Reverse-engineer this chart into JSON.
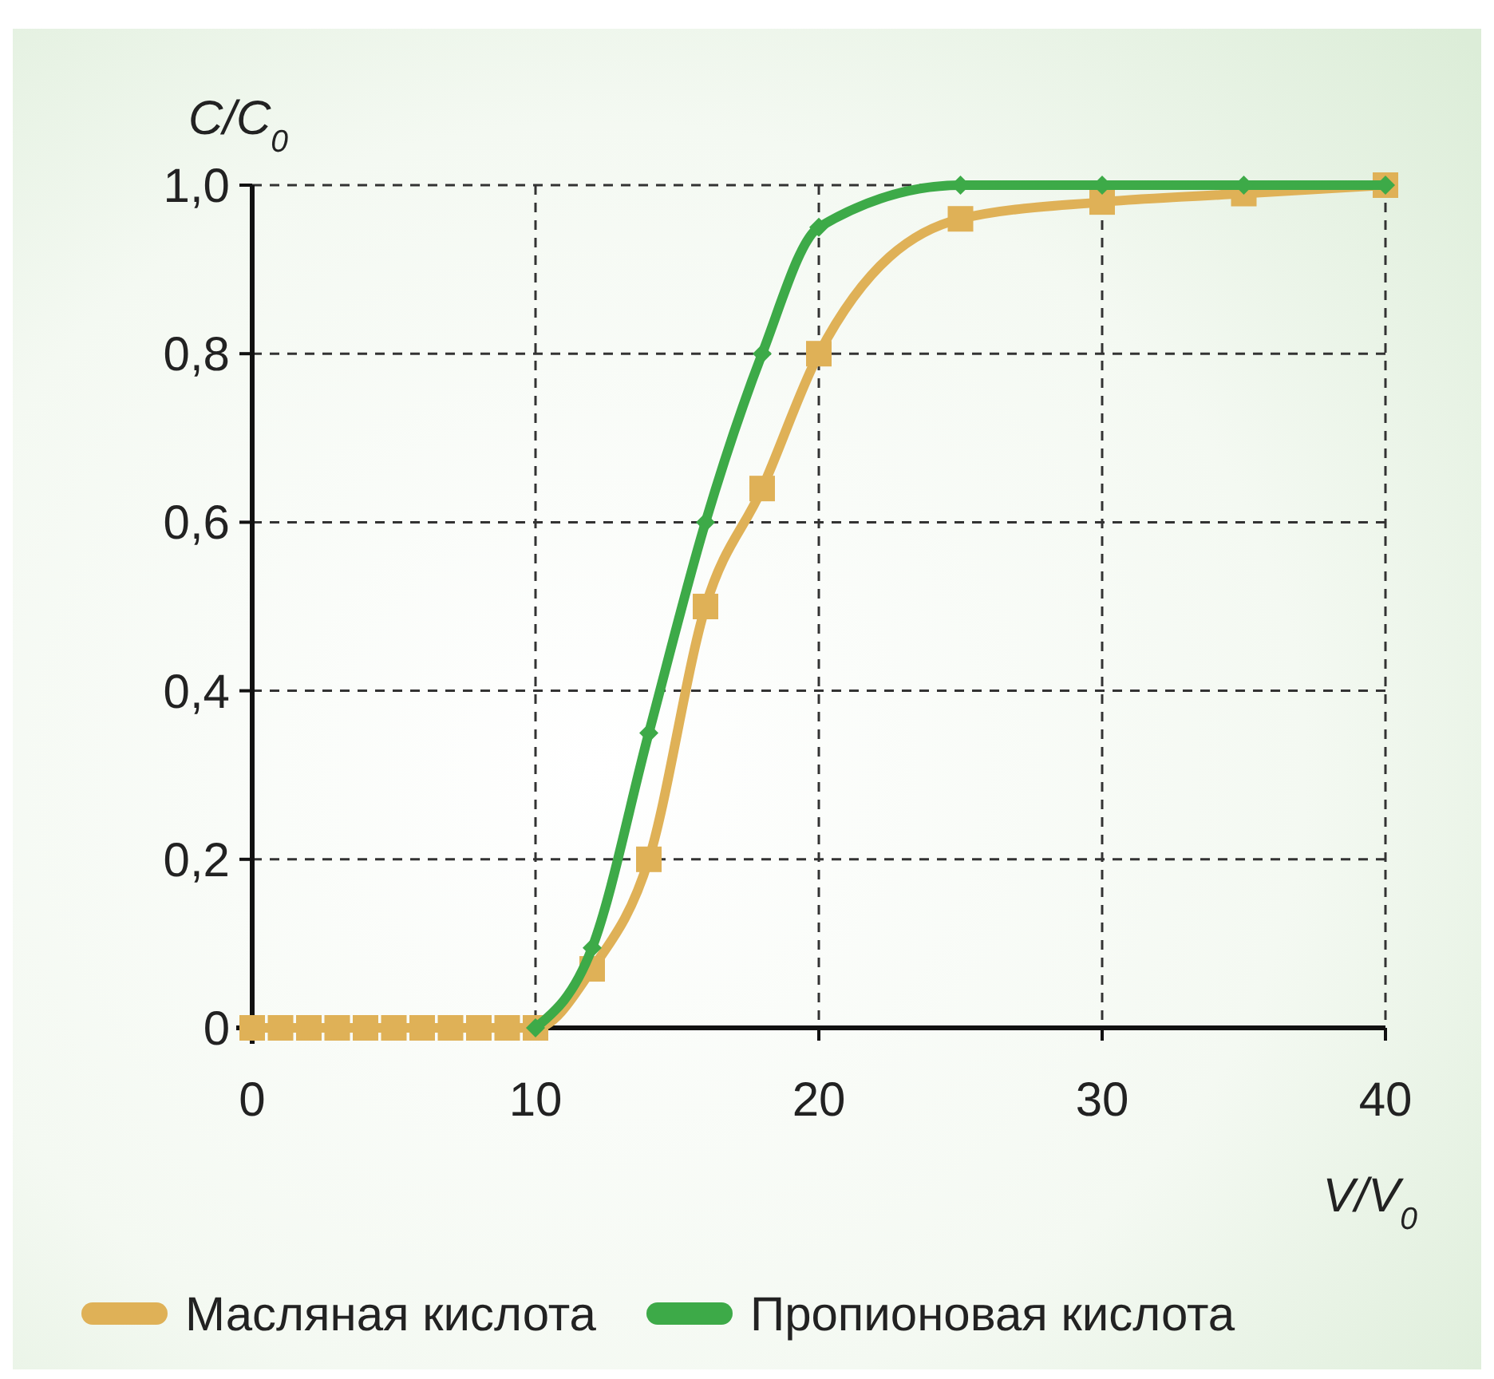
{
  "chart_data": {
    "type": "line",
    "xlabel": "V/V$_{0}$",
    "ylabel": "C/C$_{0}$",
    "xlim": [
      0,
      40
    ],
    "ylim": [
      0,
      1
    ],
    "xticks": [
      0,
      10,
      20,
      30,
      40
    ],
    "yticks": [
      {
        "value": 0,
        "label": "0"
      },
      {
        "value": 0.2,
        "label": "0,2"
      },
      {
        "value": 0.4,
        "label": "0,4"
      },
      {
        "value": 0.6,
        "label": "0,6"
      },
      {
        "value": 0.8,
        "label": "0,8"
      },
      {
        "value": 1,
        "label": "1,0"
      }
    ],
    "grid": true,
    "legend": "bottom",
    "line_style": "solid",
    "series": [
      {
        "name": "Масляная кислота",
        "color": "#dfb157",
        "marker": "square",
        "x": [
          0,
          1,
          2,
          3,
          4,
          5,
          6,
          7,
          8,
          9,
          10,
          12,
          14,
          16,
          18,
          20,
          25,
          30,
          35,
          40
        ],
        "values": [
          0,
          0,
          0,
          0,
          0,
          0,
          0,
          0,
          0,
          0,
          0,
          0.07,
          0.2,
          0.5,
          0.64,
          0.8,
          0.96,
          0.98,
          0.99,
          1.0
        ]
      },
      {
        "name": "Пропионовая кислота",
        "color": "#3daa48",
        "marker": "diamond",
        "x": [
          10,
          12,
          14,
          16,
          18,
          20,
          25,
          30,
          35,
          40
        ],
        "values": [
          0,
          0.095,
          0.35,
          0.6,
          0.8,
          0.95,
          1.0,
          1.0,
          1.0,
          1.0
        ]
      }
    ]
  }
}
